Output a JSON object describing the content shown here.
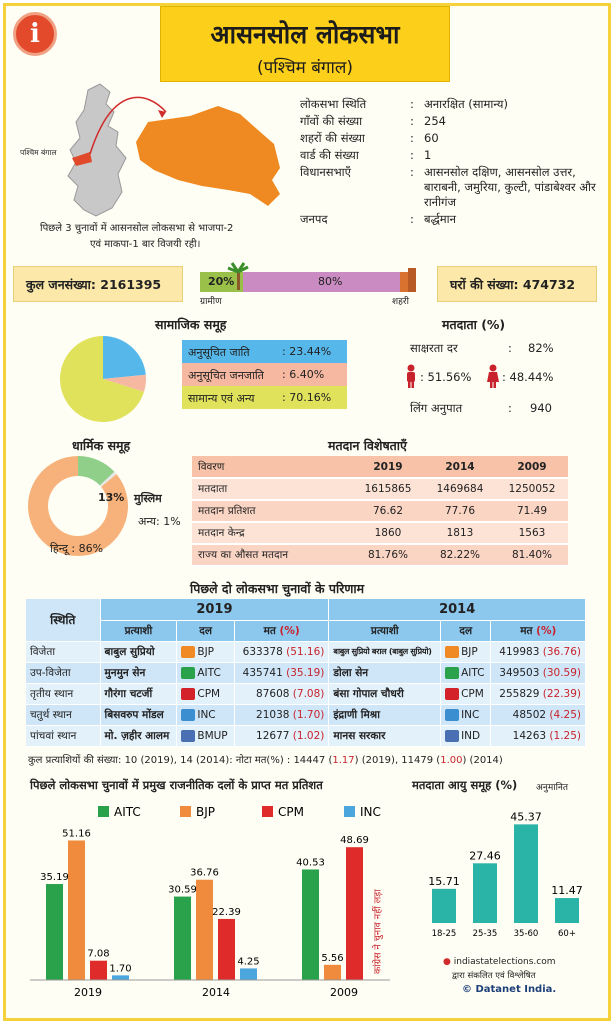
{
  "header": {
    "title": "आसनसोल लोकसभा",
    "subtitle": "(पश्चिम बंगाल)"
  },
  "map": {
    "state_label": "पश्चिम बंगाल",
    "note_line1": "पिछले 3 चुनावों में आसनसोल लोकसभा से भाजपा-2",
    "note_line2": "एवं माकपा-1 बार विजयी रही।"
  },
  "info": [
    {
      "label": "लोकसभा स्थिति",
      "sep": ":",
      "value": "अनारक्षित (सामान्य)"
    },
    {
      "label": "गाँवों की संख्या",
      "sep": ":",
      "value": "254"
    },
    {
      "label": "शहरों की संख्या",
      "sep": ":",
      "value": "60"
    },
    {
      "label": "वार्ड की संख्या",
      "sep": ":",
      "value": "1"
    },
    {
      "label": "विधानसभाएँ",
      "sep": ":",
      "value": "आसनसोल दक्षिण, आसनसोल उत्तर, बाराबनी, जमुरिया, कुल्टी, पांडाबेश्वर और रानीगंज"
    },
    {
      "label": "जनपद",
      "sep": ":",
      "value": "बर्द्धमान"
    }
  ],
  "population": {
    "total_label": "कुल जनसंख्या:",
    "total_value": "2161395",
    "rural_pct": "20%",
    "urban_pct": "80%",
    "rural_label": "ग्रामीण",
    "urban_label": "शहरी",
    "rural_share": 0.2,
    "houses_label": "घरों की संख्या:",
    "houses_value": "474732"
  },
  "social": {
    "title": "सामाजिक समूह",
    "items": [
      {
        "label": "अनुसूचित जाति",
        "value": "23.44%",
        "pct": 23.44,
        "color": "#56b8ea"
      },
      {
        "label": "अनुसूचित जनजाति",
        "value": "6.40%",
        "pct": 6.4,
        "color": "#f7b8a2"
      },
      {
        "label": "सामान्य एवं अन्य",
        "value": "70.16%",
        "pct": 70.16,
        "color": "#dfe25a"
      }
    ]
  },
  "voters": {
    "title": "मतदाता (%)",
    "literacy_label": "साक्षरता दर",
    "literacy_value": "82%",
    "male_value": "51.56%",
    "female_value": "48.44%",
    "ratio_label": "लिंग अनुपात",
    "ratio_value": "940"
  },
  "religion": {
    "title": "धार्मिक समूह",
    "muslim_label": "मुस्लिम",
    "muslim_value": "13%",
    "muslim_pct": 13,
    "other_label": "अन्य:",
    "other_value": "1%",
    "other_pct": 1,
    "hindu_label": "हिन्दू :",
    "hindu_value": "86%",
    "hindu_pct": 86,
    "colors": {
      "hindu": "#f6b27a",
      "muslim": "#8fcf8a",
      "other": "#e7e7e7"
    }
  },
  "voting": {
    "title": "मतदान विशेषताएँ",
    "headers": [
      "विवरण",
      "2019",
      "2014",
      "2009"
    ],
    "rows": [
      [
        "मतदाता",
        "1615865",
        "1469684",
        "1250052"
      ],
      [
        "मतदान प्रतिशत",
        "76.62",
        "77.76",
        "71.49"
      ],
      [
        "मतदान केन्द्र",
        "1860",
        "1813",
        "1563"
      ],
      [
        "राज्य का औसत मतदान",
        "81.76%",
        "82.22%",
        "81.40%"
      ]
    ]
  },
  "results": {
    "title": "पिछले दो लोकसभा चुनावों के परिणाम",
    "status_header": "स्थिति",
    "year1": "2019",
    "year2": "2014",
    "col_candidate": "प्रत्याशी",
    "col_party": "दल",
    "col_votes": "मत",
    "col_pct": "(%)",
    "rows": [
      {
        "status": "विजेता",
        "c19": "बाबुल सुप्रियो",
        "p19": "BJP",
        "v19": "633378",
        "pc19": "(51.16)",
        "c14": "बाबुल सुप्रियो बराल (बाबुल सुप्रियो)",
        "p14": "BJP",
        "v14": "419983",
        "pc14": "(36.76)",
        "s19": "#f08a24",
        "s14": "#f08a24"
      },
      {
        "status": "उप-विजेता",
        "c19": "मुनमुन सेन",
        "p19": "AITC",
        "v19": "435741",
        "pc19": "(35.19)",
        "c14": "डोला सेन",
        "p14": "AITC",
        "v14": "349503",
        "pc14": "(30.59)",
        "s19": "#2aa14b",
        "s14": "#2aa14b"
      },
      {
        "status": "तृतीय स्थान",
        "c19": "गौरंगा चटर्जी",
        "p19": "CPM",
        "v19": "87608",
        "pc19": "(7.08)",
        "c14": "बंसा गोपाल चौधरी",
        "p14": "CPM",
        "v14": "255829",
        "pc14": "(22.39)",
        "s19": "#d3222a",
        "s14": "#d3222a"
      },
      {
        "status": "चतुर्थ स्थान",
        "c19": "बिसवरुप मोंडल",
        "p19": "INC",
        "v19": "21038",
        "pc19": "(1.70)",
        "c14": "इंद्राणी मिश्रा",
        "p14": "INC",
        "v14": "48502",
        "pc14": "(4.25)",
        "s19": "#3b8fd0",
        "s14": "#3b8fd0"
      },
      {
        "status": "पांचवां स्थान",
        "c19": "मो. ज़हीर आलम",
        "p19": "BMUP",
        "v19": "12677",
        "pc19": "(1.02)",
        "c14": "मानस सरकार",
        "p14": "IND",
        "v14": "14263",
        "pc14": "(1.25)",
        "s19": "#4a6fb2",
        "s14": "#4a6fb2"
      }
    ],
    "footer_part1": "कुल प्रत्याशियों की संख्या: 10 (2019), 14 (2014): नोटा मत(%) : 14447 (",
    "footer_nota19": "1.17",
    "footer_part2": ") (2019), 11479 (",
    "footer_nota14": "1.00",
    "footer_part3": ") (2014)"
  },
  "party_chart_title": "पिछले लोकसभा चुनावों में प्रमुख राजनीतिक दलों के प्राप्त मत प्रतिशत",
  "age_title": "मतदाता आयु समूह (%)",
  "age_note": "अनुमानित",
  "credits": {
    "site": "indiastatelections.com",
    "line2": "द्वारा संकलित एवं विश्लेषित",
    "brand": "© Datanet India."
  },
  "chart_data": [
    {
      "type": "bar",
      "title": "पिछले लोकसभा चुनावों में प्रमुख राजनीतिक दलों के प्राप्त मत प्रतिशत",
      "categories": [
        "2019",
        "2014",
        "2009"
      ],
      "series": [
        {
          "name": "AITC",
          "color": "#2aa14b",
          "values": [
            35.19,
            30.59,
            40.53
          ]
        },
        {
          "name": "BJP",
          "color": "#f08a3c",
          "values": [
            51.16,
            36.76,
            5.56
          ]
        },
        {
          "name": "CPM",
          "color": "#e02b2b",
          "values": [
            7.08,
            22.39,
            48.69
          ]
        },
        {
          "name": "INC",
          "color": "#4aa6dc",
          "values": [
            1.7,
            4.25,
            null
          ]
        }
      ],
      "annotation": "कांग्रेस ने चुनाव नहीं लड़ा",
      "legend": "top",
      "grid": false
    },
    {
      "type": "bar",
      "title": "मतदाता आयु समूह (%)",
      "categories": [
        "18-25",
        "25-35",
        "35-60",
        "60+"
      ],
      "values": [
        15.71,
        27.46,
        45.37,
        11.47
      ],
      "color": "#2ab3a7",
      "grid": false
    }
  ]
}
